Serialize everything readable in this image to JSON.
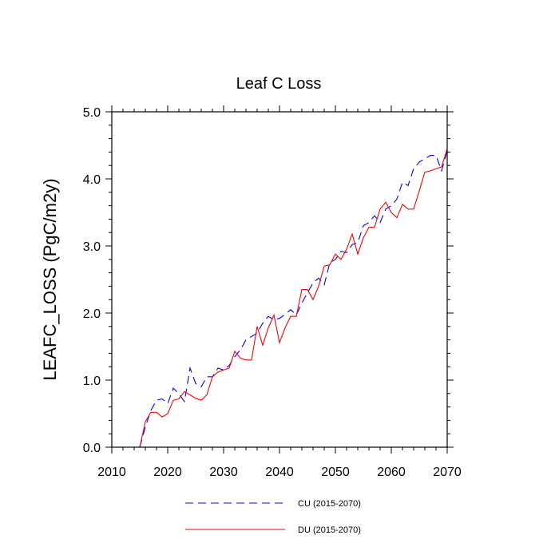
{
  "chart_data": {
    "type": "line",
    "title": "Leaf C Loss",
    "xlabel": "",
    "ylabel": "LEAFC_LOSS  (PgC/m2y)",
    "xlim": [
      2010,
      2070
    ],
    "ylim": [
      0,
      5
    ],
    "x_ticks": [
      2010,
      2020,
      2030,
      2040,
      2050,
      2060,
      2070
    ],
    "x_tick_labels": [
      "2010",
      "2020",
      "2030",
      "2040",
      "2050",
      "2060",
      "2070"
    ],
    "y_ticks": [
      0,
      1,
      2,
      3,
      4,
      5
    ],
    "y_tick_labels": [
      "0.0",
      "1.0",
      "2.0",
      "3.0",
      "4.0",
      "5.0"
    ],
    "grid": false,
    "legend_position": "bottom",
    "x": [
      2015,
      2016,
      2017,
      2018,
      2019,
      2020,
      2021,
      2022,
      2023,
      2024,
      2025,
      2026,
      2027,
      2028,
      2029,
      2030,
      2031,
      2032,
      2033,
      2034,
      2035,
      2036,
      2037,
      2038,
      2039,
      2040,
      2041,
      2042,
      2043,
      2044,
      2045,
      2046,
      2047,
      2048,
      2049,
      2050,
      2051,
      2052,
      2053,
      2054,
      2055,
      2056,
      2057,
      2058,
      2059,
      2060,
      2061,
      2062,
      2063,
      2064,
      2065,
      2066,
      2067,
      2068,
      2069,
      2070
    ],
    "series": [
      {
        "name": "CU (2015-2070)",
        "color": "#0000ff",
        "dash": "dashed",
        "values": [
          0.0,
          0.3,
          0.55,
          0.7,
          0.72,
          0.65,
          0.88,
          0.8,
          0.68,
          1.18,
          0.95,
          0.9,
          1.05,
          1.05,
          1.18,
          1.15,
          1.22,
          1.35,
          1.45,
          1.6,
          1.65,
          1.7,
          1.85,
          1.95,
          1.9,
          1.92,
          1.98,
          2.05,
          1.97,
          2.15,
          2.3,
          2.45,
          2.52,
          2.42,
          2.75,
          2.8,
          2.92,
          2.9,
          3.02,
          3.05,
          3.3,
          3.35,
          3.45,
          3.35,
          3.55,
          3.6,
          3.7,
          3.95,
          3.9,
          4.15,
          4.25,
          4.3,
          4.35,
          4.35,
          4.12,
          4.42
        ]
      },
      {
        "name": "DU (2015-2070)",
        "color": "#ff0000",
        "dash": "solid",
        "values": [
          0.0,
          0.38,
          0.52,
          0.52,
          0.45,
          0.5,
          0.7,
          0.72,
          0.83,
          0.78,
          0.73,
          0.7,
          0.78,
          1.05,
          1.12,
          1.15,
          1.18,
          1.43,
          1.33,
          1.3,
          1.3,
          1.8,
          1.52,
          1.78,
          1.97,
          1.56,
          1.78,
          1.95,
          1.95,
          2.35,
          2.35,
          2.2,
          2.4,
          2.7,
          2.72,
          2.88,
          2.8,
          2.95,
          3.18,
          2.88,
          3.12,
          3.28,
          3.28,
          3.55,
          3.65,
          3.5,
          3.42,
          3.62,
          3.55,
          3.55,
          3.82,
          4.1,
          4.12,
          4.15,
          4.18,
          4.45
        ]
      }
    ]
  }
}
